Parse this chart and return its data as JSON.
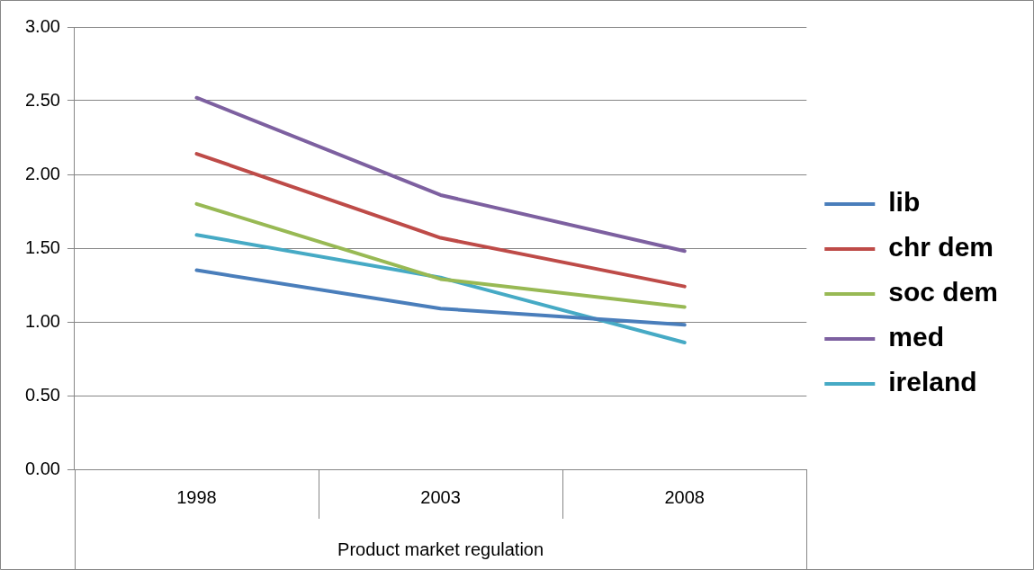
{
  "chart_data": {
    "type": "line",
    "xlabel": "Product market regulation",
    "categories": [
      "1998",
      "2003",
      "2008"
    ],
    "series": [
      {
        "name": "lib",
        "color": "#4a7ebb",
        "values": [
          1.35,
          1.09,
          0.98
        ]
      },
      {
        "name": "chr dem",
        "color": "#be4b48",
        "values": [
          2.14,
          1.57,
          1.24
        ]
      },
      {
        "name": "soc dem",
        "color": "#98b954",
        "values": [
          1.8,
          1.29,
          1.1
        ]
      },
      {
        "name": "med",
        "color": "#7d60a0",
        "values": [
          2.52,
          1.86,
          1.48
        ]
      },
      {
        "name": "ireland",
        "color": "#46aac5",
        "values": [
          1.59,
          1.3,
          0.86
        ]
      }
    ],
    "ylim": [
      0,
      3
    ],
    "yticks": [
      {
        "value": 0,
        "label": "0.00"
      },
      {
        "value": 0.5,
        "label": "0.50"
      },
      {
        "value": 1,
        "label": "1.00"
      },
      {
        "value": 1.5,
        "label": "1.50"
      },
      {
        "value": 2,
        "label": "2.00"
      },
      {
        "value": 2.5,
        "label": "2.50"
      },
      {
        "value": 3,
        "label": "3.00"
      }
    ],
    "grid": "y",
    "legend": "right",
    "marker": "none",
    "line_style": "solid"
  }
}
